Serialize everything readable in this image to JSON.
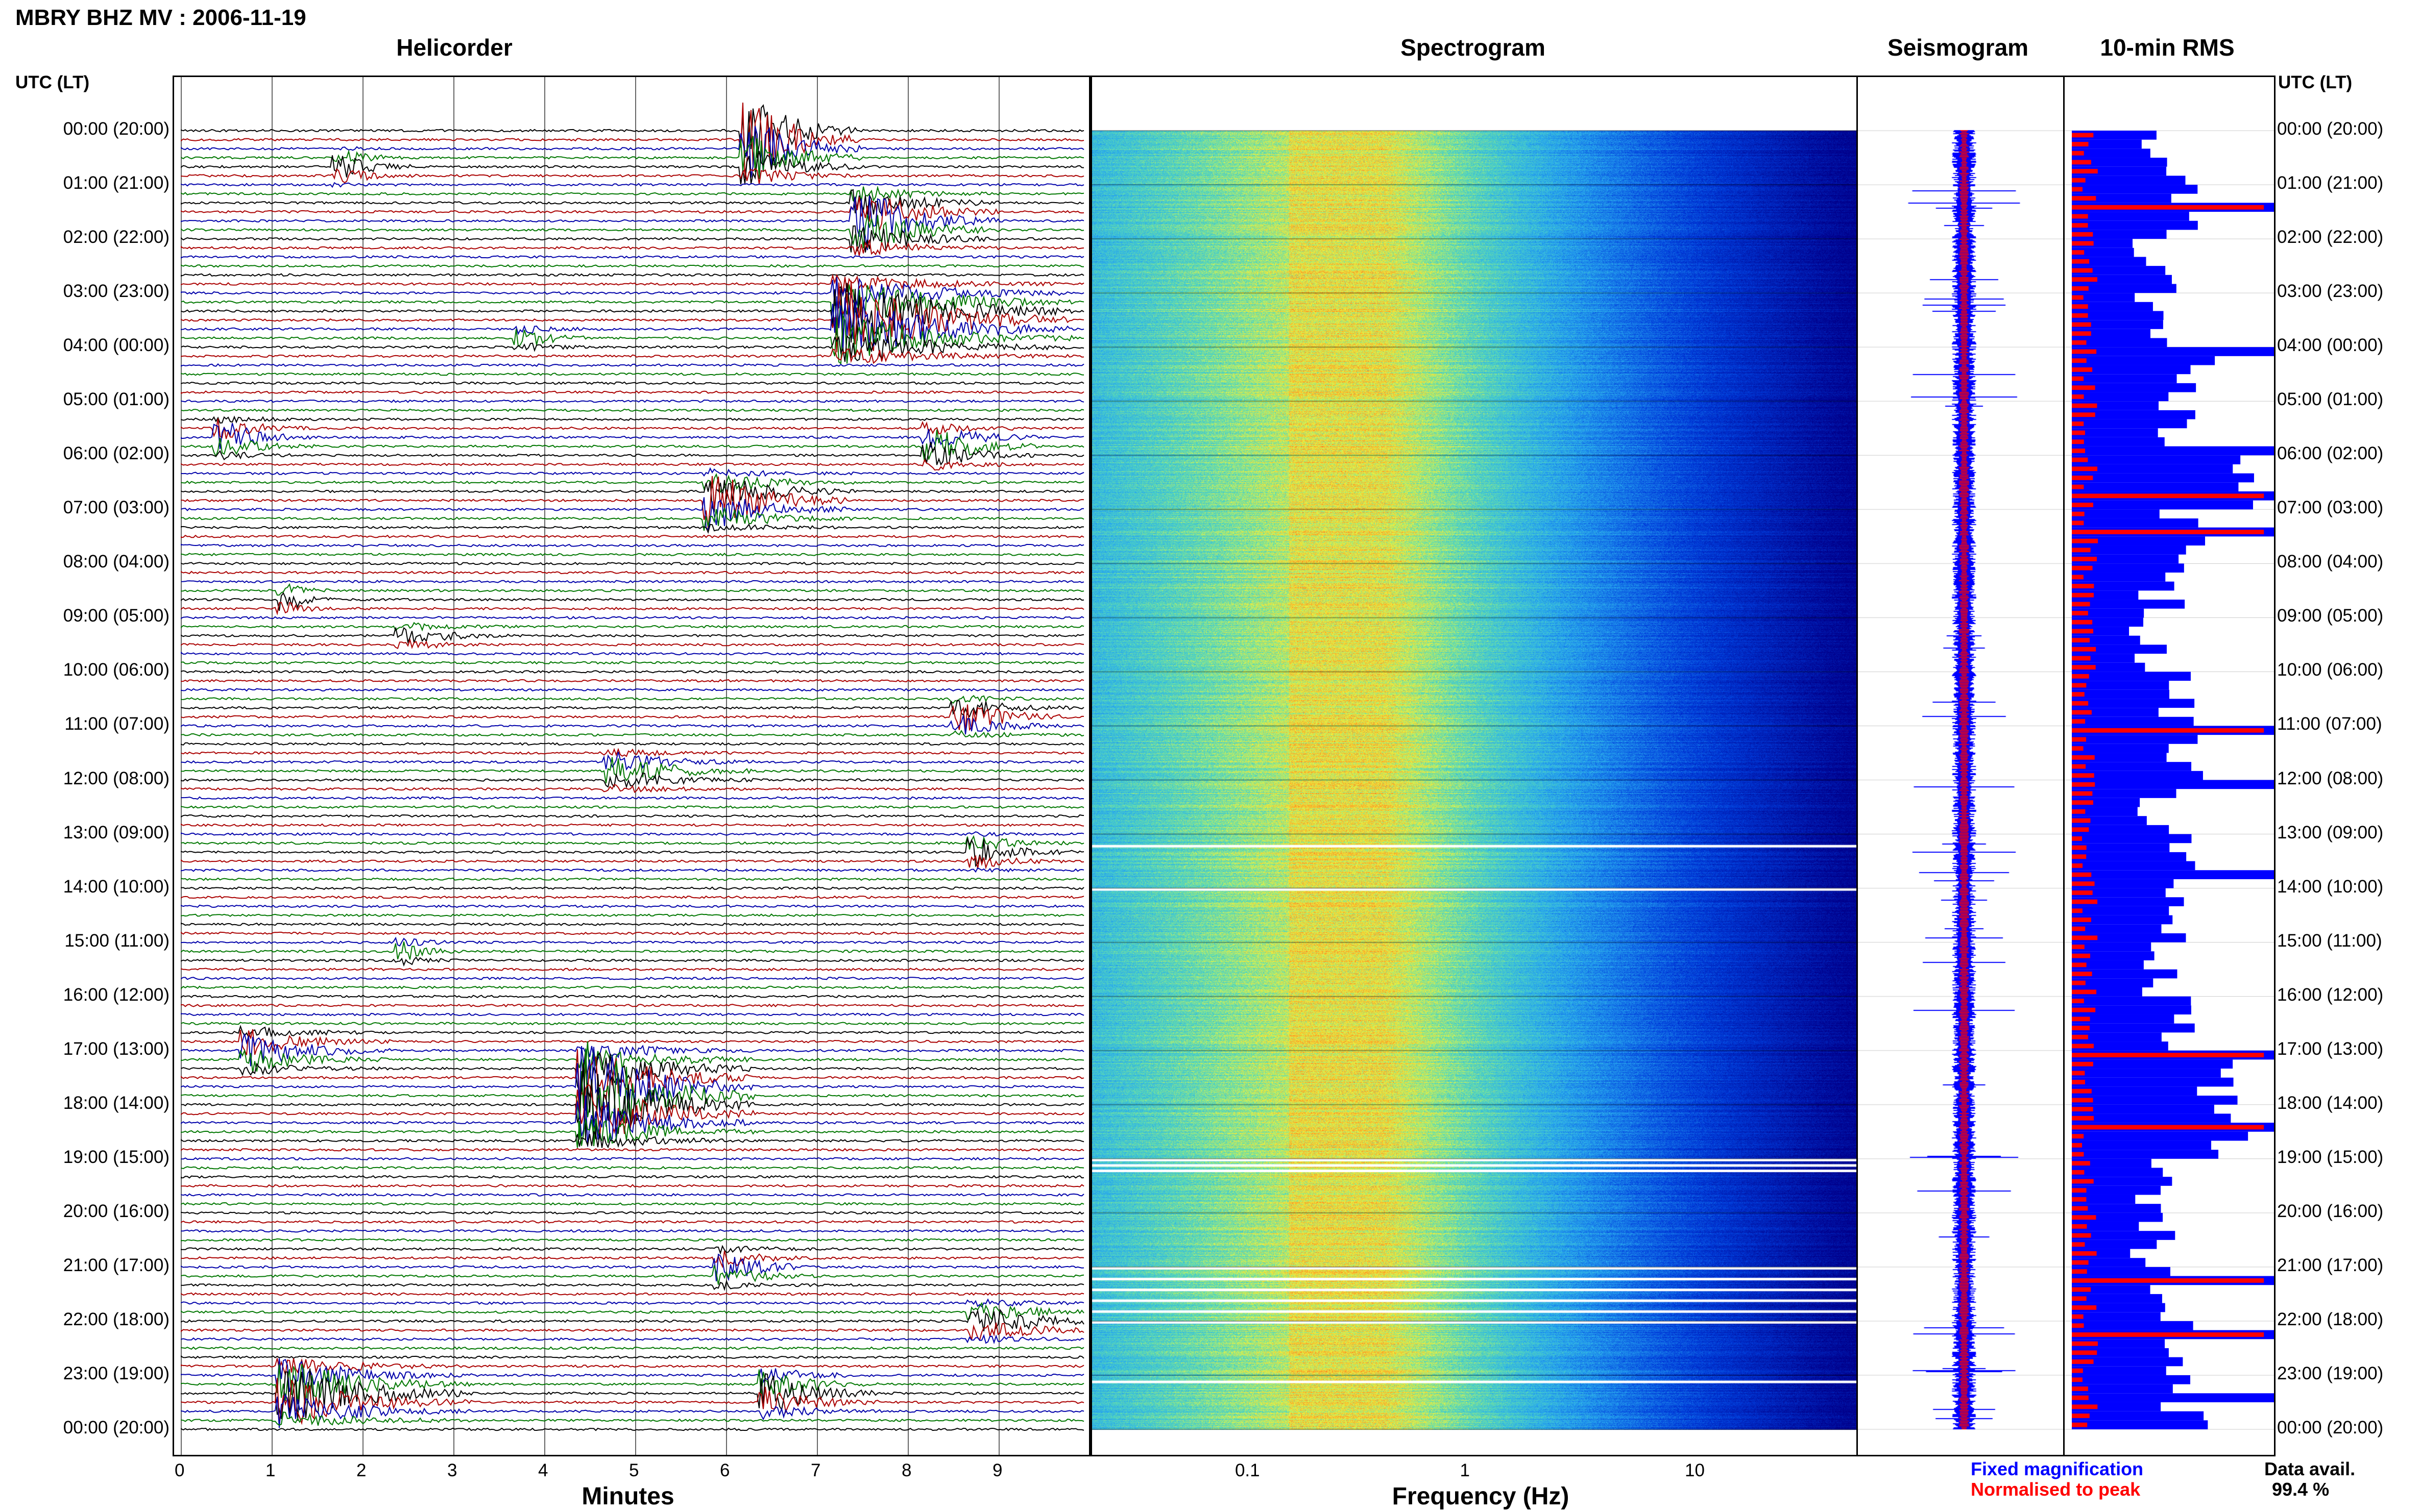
{
  "header": {
    "title": "MBRY BHZ MV : 2006-11-19"
  },
  "panels": {
    "helicorder": "Helicorder",
    "spectrogram": "Spectrogram",
    "seismogram": "Seismogram",
    "rms": "10-min RMS"
  },
  "axis": {
    "utc_label": "UTC (LT)",
    "time_labels": [
      "00:00 (20:00)",
      "01:00 (21:00)",
      "02:00 (22:00)",
      "03:00 (23:00)",
      "04:00 (00:00)",
      "05:00 (01:00)",
      "06:00 (02:00)",
      "07:00 (03:00)",
      "08:00 (04:00)",
      "09:00 (05:00)",
      "10:00 (06:00)",
      "11:00 (07:00)",
      "12:00 (08:00)",
      "13:00 (09:00)",
      "14:00 (10:00)",
      "15:00 (11:00)",
      "16:00 (12:00)",
      "17:00 (13:00)",
      "18:00 (14:00)",
      "19:00 (15:00)",
      "20:00 (16:00)",
      "21:00 (17:00)",
      "22:00 (18:00)",
      "23:00 (19:00)",
      "00:00 (20:00)"
    ],
    "minutes_title": "Minutes",
    "minute_ticks": [
      "0",
      "1",
      "2",
      "3",
      "4",
      "5",
      "6",
      "7",
      "8",
      "9"
    ],
    "frequency_title": "Frequency (Hz)",
    "frequency_ticks": [
      "0.1",
      "1",
      "10"
    ]
  },
  "legend": {
    "fixed": "Fixed magnification",
    "normalised": "Normalised to peak",
    "data_avail_label": "Data avail.",
    "data_avail_value": "99.4 %"
  },
  "colors": {
    "trace_cycle": [
      "#000000",
      "#aa0000",
      "#0000aa",
      "#007700"
    ],
    "fixed": "#0000ff",
    "normalised": "#ff0000",
    "spec_low": "#00008b",
    "spec_mid": "#3aa0ff",
    "spec_high": "#ffff30"
  },
  "chart_data": {
    "type": "heatmap",
    "title": "MBRY BHZ MV : 2006-11-19",
    "helicorder": {
      "xlabel": "Minutes",
      "xlim": [
        0,
        10
      ],
      "rows_per_hour": 6,
      "hours": 24,
      "events": [
        {
          "hour": 0.1,
          "minute": 6.3,
          "amp": 4.0,
          "dur": 1.2
        },
        {
          "hour": 0.7,
          "minute": 1.8,
          "amp": 1.2,
          "dur": 0.8
        },
        {
          "hour": 1.7,
          "minute": 7.5,
          "amp": 3.0,
          "dur": 1.5
        },
        {
          "hour": 3.5,
          "minute": 7.3,
          "amp": 4.0,
          "dur": 2.5
        },
        {
          "hour": 3.8,
          "minute": 3.8,
          "amp": 0.8,
          "dur": 0.8
        },
        {
          "hour": 5.6,
          "minute": 0.5,
          "amp": 1.5,
          "dur": 1.0
        },
        {
          "hour": 5.8,
          "minute": 8.3,
          "amp": 1.8,
          "dur": 1.2
        },
        {
          "hour": 6.8,
          "minute": 5.9,
          "amp": 2.5,
          "dur": 1.5
        },
        {
          "hour": 8.6,
          "minute": 1.2,
          "amp": 1.0,
          "dur": 0.5
        },
        {
          "hour": 9.3,
          "minute": 2.5,
          "amp": 0.8,
          "dur": 1.2
        },
        {
          "hour": 10.8,
          "minute": 8.6,
          "amp": 1.5,
          "dur": 1.2
        },
        {
          "hour": 11.8,
          "minute": 4.8,
          "amp": 1.5,
          "dur": 1.5
        },
        {
          "hour": 13.3,
          "minute": 8.8,
          "amp": 1.2,
          "dur": 1.0
        },
        {
          "hour": 15.2,
          "minute": 2.5,
          "amp": 0.8,
          "dur": 0.6
        },
        {
          "hour": 17.0,
          "minute": 0.8,
          "amp": 1.8,
          "dur": 1.5
        },
        {
          "hour": 17.9,
          "minute": 4.5,
          "amp": 5.0,
          "dur": 1.8
        },
        {
          "hour": 21.0,
          "minute": 6.0,
          "amp": 1.5,
          "dur": 1.0
        },
        {
          "hour": 22.0,
          "minute": 8.8,
          "amp": 1.5,
          "dur": 1.6
        },
        {
          "hour": 23.3,
          "minute": 1.2,
          "amp": 3.0,
          "dur": 2.0
        },
        {
          "hour": 23.3,
          "minute": 6.5,
          "amp": 2.0,
          "dur": 1.2
        }
      ]
    },
    "spectrogram": {
      "xlabel": "Frequency (Hz)",
      "xscale": "log",
      "xlim": [
        0.02,
        50
      ],
      "peak_frequency_band": [
        0.15,
        0.4
      ],
      "gaps_hours": [
        19.0,
        19.1,
        19.2,
        21.0,
        21.2,
        21.4,
        21.6,
        21.8,
        22.0,
        23.1,
        13.2,
        14.0
      ]
    },
    "rms": {
      "ylabel": "UTC (LT)",
      "interval_min": 10,
      "hourly_fixed": [
        0.45,
        0.55,
        0.4,
        0.35,
        0.6,
        0.5,
        0.8,
        0.55,
        0.45,
        0.4,
        0.5,
        0.55,
        0.45,
        0.55,
        0.5,
        0.45,
        0.55,
        0.7,
        0.75,
        0.4,
        0.4,
        0.45,
        0.5,
        0.55
      ],
      "saturated_rows": [
        1.3,
        4.0,
        5.9,
        6.6,
        7.4,
        11.0,
        12.0,
        13.7,
        17.0,
        18.4,
        21.2,
        22.2,
        23.3
      ]
    },
    "data_availability_percent": 99.4
  }
}
